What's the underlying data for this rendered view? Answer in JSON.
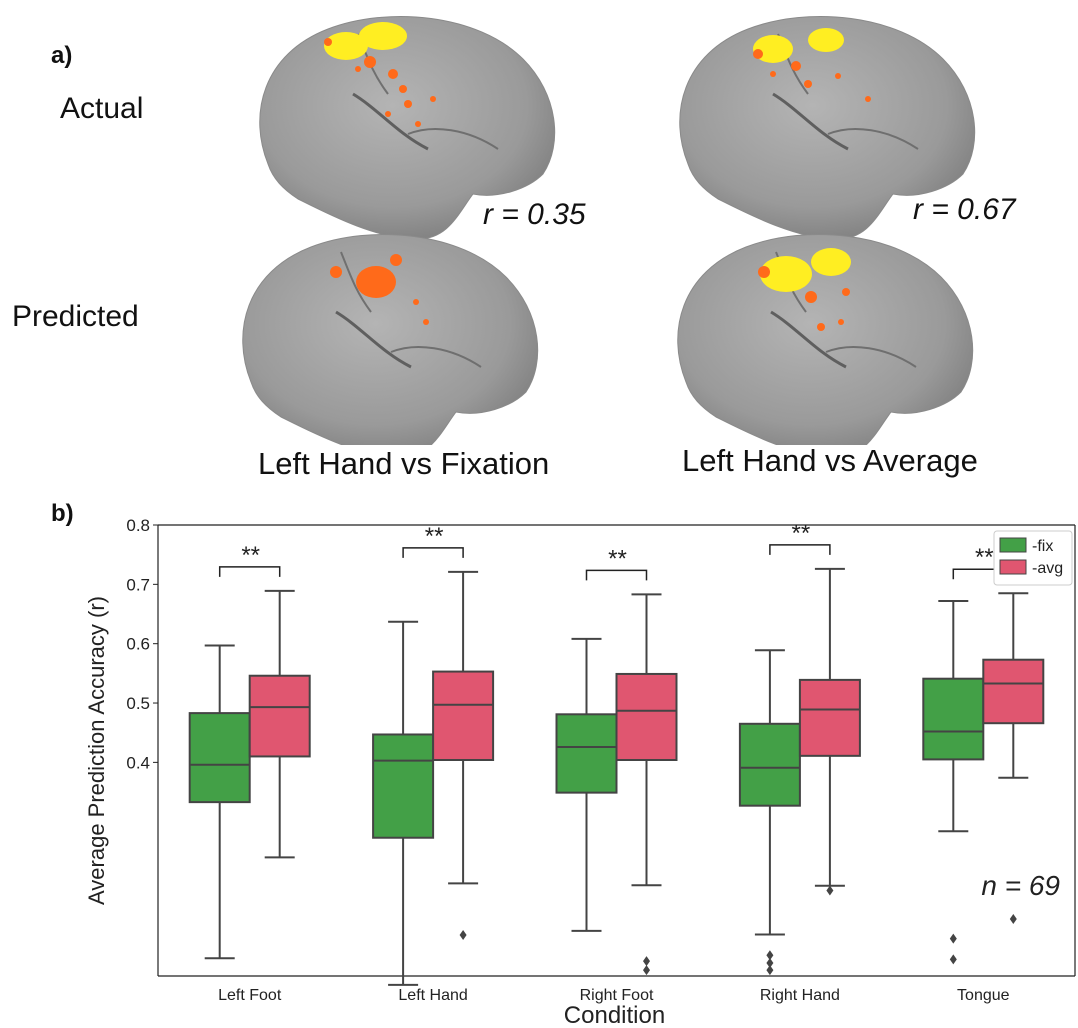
{
  "panel_a": {
    "label": "a)",
    "rows": [
      "Actual",
      "Predicted"
    ],
    "correlations": [
      "r = 0.35",
      "r = 0.67"
    ],
    "captions": [
      "Left Hand vs Fixation",
      "Left Hand vs Average"
    ]
  },
  "panel_b": {
    "label": "b)"
  },
  "chart_data": {
    "type": "box",
    "xlabel": "Condition",
    "ylabel": "Average Prediction Accuracy (r)",
    "ylim": [
      0.04,
      0.8
    ],
    "yticks": [
      0.4,
      0.5,
      0.6,
      0.7,
      0.8
    ],
    "categories": [
      "Left Foot",
      "Left Hand",
      "Right Foot",
      "Right Hand",
      "Tongue"
    ],
    "annotation": "n = 69",
    "significance_label": "**",
    "legend_position": "top-right",
    "series": [
      {
        "name": "-fix",
        "color": "#43a047",
        "boxes": [
          {
            "whislo": 0.07,
            "q1": 0.333,
            "med": 0.396,
            "q3": 0.483,
            "whishi": 0.597,
            "fliers": []
          },
          {
            "whislo": 0.025,
            "q1": 0.273,
            "med": 0.403,
            "q3": 0.447,
            "whishi": 0.637,
            "fliers": []
          },
          {
            "whislo": 0.116,
            "q1": 0.349,
            "med": 0.426,
            "q3": 0.481,
            "whishi": 0.608,
            "fliers": []
          },
          {
            "whislo": 0.11,
            "q1": 0.327,
            "med": 0.391,
            "q3": 0.465,
            "whishi": 0.589,
            "fliers": [
              0.075,
              0.062,
              0.05
            ]
          },
          {
            "whislo": 0.284,
            "q1": 0.405,
            "med": 0.452,
            "q3": 0.541,
            "whishi": 0.672,
            "fliers": [
              0.103,
              0.068
            ]
          }
        ]
      },
      {
        "name": "-avg",
        "color": "#e05670",
        "boxes": [
          {
            "whislo": 0.24,
            "q1": 0.41,
            "med": 0.493,
            "q3": 0.546,
            "whishi": 0.689,
            "fliers": []
          },
          {
            "whislo": 0.196,
            "q1": 0.404,
            "med": 0.497,
            "q3": 0.553,
            "whishi": 0.721,
            "fliers": [
              0.109
            ]
          },
          {
            "whislo": 0.193,
            "q1": 0.404,
            "med": 0.487,
            "q3": 0.549,
            "whishi": 0.683,
            "fliers": [
              0.065,
              0.05
            ]
          },
          {
            "whislo": 0.192,
            "q1": 0.411,
            "med": 0.489,
            "q3": 0.539,
            "whishi": 0.726,
            "fliers": [
              0.184
            ]
          },
          {
            "whislo": 0.374,
            "q1": 0.466,
            "med": 0.533,
            "q3": 0.573,
            "whishi": 0.685,
            "fliers": [
              0.136
            ]
          }
        ]
      }
    ]
  }
}
